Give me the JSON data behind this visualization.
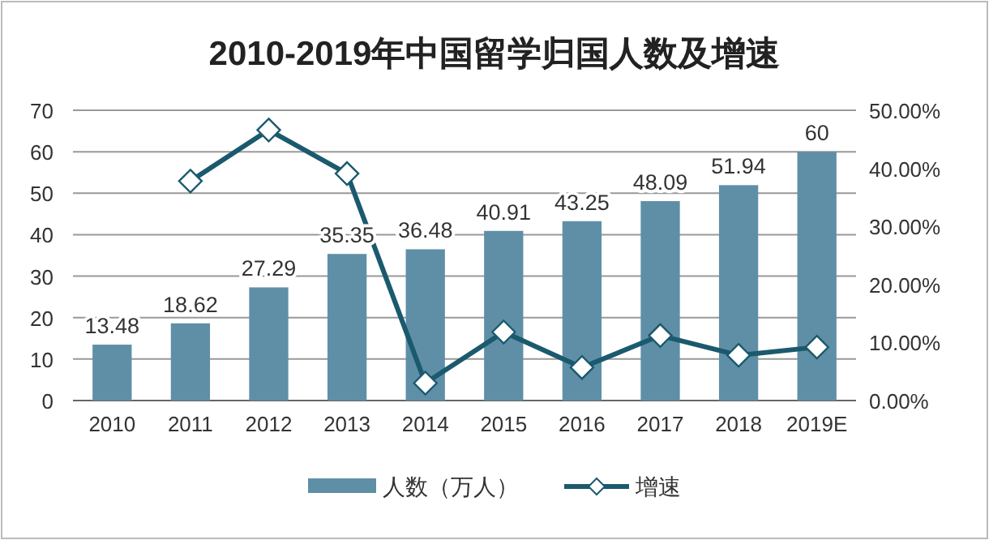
{
  "chart_data": {
    "type": "bar",
    "title": "2010-2019年中国留学归国人数及增速",
    "categories": [
      "2010",
      "2011",
      "2012",
      "2013",
      "2014",
      "2015",
      "2016",
      "2017",
      "2018",
      "2019E"
    ],
    "series": [
      {
        "name": "人数（万人）",
        "color": "#5f8fa7",
        "values": [
          13.48,
          18.62,
          27.29,
          35.35,
          36.48,
          40.91,
          43.25,
          48.09,
          51.94,
          60
        ],
        "value_labels": [
          "13.48",
          "18.62",
          "27.29",
          "35.35",
          "36.48",
          "40.91",
          "43.25",
          "48.09",
          "51.94",
          "60"
        ]
      },
      {
        "name": "增速",
        "type": "line",
        "axis": "y2",
        "color": "#1b5a6e",
        "marker": "diamond",
        "values": [
          null,
          0.378,
          0.466,
          0.391,
          0.03,
          0.118,
          0.057,
          0.112,
          0.078,
          0.092
        ]
      }
    ],
    "ylim": [
      0,
      70
    ],
    "yticks": [
      0,
      10,
      20,
      30,
      40,
      50,
      60,
      70
    ],
    "y2lim": [
      0,
      0.5
    ],
    "y2ticks": [
      {
        "value": 0,
        "label": "0.00%"
      },
      {
        "value": 0.1,
        "label": "10.00%"
      },
      {
        "value": 0.2,
        "label": "20.00%"
      },
      {
        "value": 0.3,
        "label": "30.00%"
      },
      {
        "value": 0.4,
        "label": "40.00%"
      },
      {
        "value": 0.5,
        "label": "50.00%"
      }
    ],
    "grid": "y",
    "legend": "bottom"
  }
}
